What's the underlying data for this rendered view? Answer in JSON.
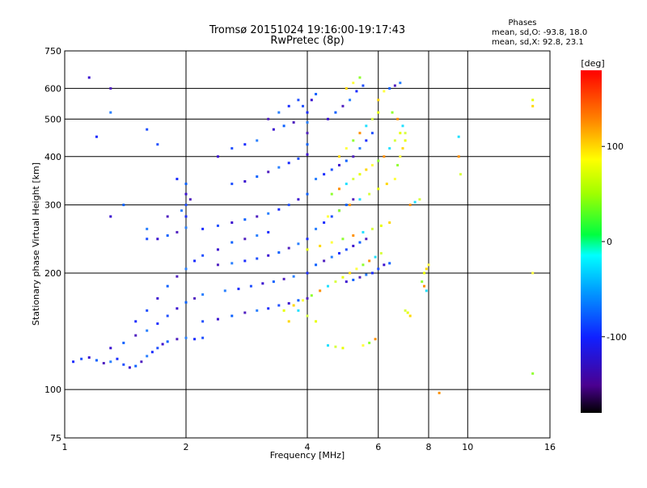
{
  "chart_data": {
    "type": "scatter",
    "title": "Tromsø 20151024 19:16:00-19:17:43",
    "subtitle": "RwPretec (8p)",
    "xlabel": "Frequency [MHz]",
    "ylabel": "Stationary phase Virtual Height [km]",
    "x_scale": "log",
    "y_scale": "log",
    "xlim": [
      1,
      16
    ],
    "ylim": [
      75,
      750
    ],
    "x_ticks": [
      1,
      2,
      4,
      6,
      8,
      10,
      16
    ],
    "x_tick_labels": [
      "1",
      "2",
      "4",
      "6",
      "8",
      "10",
      "16"
    ],
    "y_ticks": [
      75,
      100,
      200,
      300,
      400,
      500,
      600,
      750
    ],
    "y_tick_labels": [
      "75",
      "100",
      "200",
      "300",
      "400",
      "500",
      "600",
      "750"
    ],
    "grid": true,
    "stats": {
      "heading": "Phases",
      "line1": "mean, sd,O: -93.8, 18.0",
      "line2": "mean, sd,X:  92.8, 23.1"
    },
    "colorbar": {
      "label": "[deg]",
      "range": [
        -180,
        180
      ],
      "ticks": [
        100,
        0,
        -100
      ],
      "tick_labels": [
        "100",
        "0",
        "-100"
      ]
    },
    "series": [
      {
        "phase": "O",
        "points": [
          [
            1.05,
            118
          ],
          [
            1.1,
            120
          ],
          [
            1.15,
            121
          ],
          [
            1.2,
            119
          ],
          [
            1.25,
            117
          ],
          [
            1.3,
            118
          ],
          [
            1.35,
            120
          ],
          [
            1.4,
            116
          ],
          [
            1.45,
            114
          ],
          [
            1.5,
            115
          ],
          [
            1.55,
            118
          ],
          [
            1.6,
            122
          ],
          [
            1.65,
            125
          ],
          [
            1.7,
            128
          ],
          [
            1.75,
            131
          ],
          [
            1.8,
            133
          ],
          [
            1.9,
            135
          ],
          [
            2.0,
            136
          ],
          [
            2.1,
            135
          ],
          [
            2.2,
            136
          ],
          [
            1.3,
            128
          ],
          [
            1.4,
            132
          ],
          [
            1.5,
            138
          ],
          [
            1.6,
            142
          ],
          [
            1.7,
            148
          ],
          [
            1.8,
            155
          ],
          [
            1.9,
            162
          ],
          [
            2.0,
            168
          ],
          [
            2.1,
            172
          ],
          [
            2.2,
            176
          ],
          [
            1.5,
            150
          ],
          [
            1.6,
            160
          ],
          [
            1.7,
            172
          ],
          [
            1.8,
            185
          ],
          [
            1.9,
            196
          ],
          [
            2.0,
            205
          ],
          [
            2.1,
            215
          ],
          [
            2.2,
            222
          ],
          [
            2.4,
            230
          ],
          [
            2.6,
            240
          ],
          [
            2.8,
            245
          ],
          [
            3.0,
            250
          ],
          [
            3.2,
            255
          ],
          [
            1.6,
            245
          ],
          [
            1.7,
            245
          ],
          [
            1.8,
            250
          ],
          [
            1.9,
            255
          ],
          [
            2.0,
            262
          ],
          [
            2.0,
            280
          ],
          [
            2.0,
            300
          ],
          [
            2.0,
            320
          ],
          [
            2.0,
            340
          ],
          [
            2.05,
            310
          ],
          [
            1.95,
            290
          ],
          [
            2.2,
            260
          ],
          [
            2.4,
            265
          ],
          [
            2.6,
            270
          ],
          [
            2.8,
            275
          ],
          [
            3.0,
            280
          ],
          [
            3.2,
            285
          ],
          [
            3.4,
            292
          ],
          [
            3.6,
            300
          ],
          [
            3.8,
            310
          ],
          [
            4.0,
            320
          ],
          [
            2.4,
            210
          ],
          [
            2.6,
            212
          ],
          [
            2.8,
            215
          ],
          [
            3.0,
            218
          ],
          [
            3.2,
            222
          ],
          [
            3.4,
            226
          ],
          [
            3.6,
            232
          ],
          [
            3.8,
            238
          ],
          [
            4.0,
            245
          ],
          [
            2.2,
            150
          ],
          [
            2.4,
            152
          ],
          [
            2.6,
            155
          ],
          [
            2.8,
            158
          ],
          [
            3.0,
            160
          ],
          [
            3.2,
            162
          ],
          [
            3.4,
            165
          ],
          [
            3.6,
            167
          ],
          [
            3.8,
            170
          ],
          [
            4.0,
            172
          ],
          [
            2.5,
            180
          ],
          [
            2.7,
            182
          ],
          [
            2.9,
            185
          ],
          [
            3.1,
            188
          ],
          [
            3.3,
            190
          ],
          [
            3.5,
            193
          ],
          [
            3.7,
            196
          ],
          [
            4.0,
            200
          ],
          [
            2.6,
            340
          ],
          [
            2.8,
            345
          ],
          [
            3.0,
            355
          ],
          [
            3.2,
            365
          ],
          [
            3.4,
            375
          ],
          [
            3.6,
            385
          ],
          [
            3.8,
            395
          ],
          [
            4.0,
            405
          ],
          [
            4.0,
            430
          ],
          [
            4.0,
            460
          ],
          [
            4.0,
            490
          ],
          [
            4.0,
            520
          ],
          [
            3.9,
            540
          ],
          [
            4.1,
            560
          ],
          [
            4.2,
            580
          ],
          [
            3.2,
            500
          ],
          [
            3.4,
            520
          ],
          [
            3.6,
            540
          ],
          [
            3.8,
            560
          ],
          [
            3.3,
            470
          ],
          [
            3.5,
            480
          ],
          [
            3.7,
            490
          ],
          [
            3.0,
            440
          ],
          [
            2.8,
            430
          ],
          [
            2.6,
            420
          ],
          [
            2.4,
            400
          ],
          [
            4.2,
            210
          ],
          [
            4.4,
            215
          ],
          [
            4.6,
            220
          ],
          [
            4.8,
            225
          ],
          [
            5.0,
            230
          ],
          [
            5.2,
            235
          ],
          [
            5.4,
            240
          ],
          [
            5.6,
            245
          ],
          [
            4.2,
            260
          ],
          [
            4.4,
            270
          ],
          [
            4.6,
            280
          ],
          [
            4.8,
            290
          ],
          [
            5.0,
            300
          ],
          [
            5.2,
            310
          ],
          [
            4.2,
            350
          ],
          [
            4.4,
            360
          ],
          [
            4.6,
            370
          ],
          [
            4.8,
            380
          ],
          [
            5.0,
            390
          ],
          [
            5.2,
            400
          ],
          [
            5.4,
            420
          ],
          [
            5.6,
            440
          ],
          [
            5.8,
            460
          ],
          [
            4.5,
            500
          ],
          [
            4.7,
            520
          ],
          [
            4.9,
            540
          ],
          [
            5.1,
            560
          ],
          [
            5.3,
            590
          ],
          [
            5.5,
            610
          ],
          [
            5.0,
            190
          ],
          [
            5.2,
            192
          ],
          [
            5.4,
            195
          ],
          [
            5.6,
            198
          ],
          [
            5.8,
            200
          ],
          [
            6.0,
            205
          ],
          [
            6.2,
            210
          ],
          [
            6.4,
            212
          ],
          [
            1.3,
            600
          ],
          [
            1.3,
            520
          ],
          [
            1.2,
            450
          ],
          [
            1.6,
            470
          ],
          [
            1.3,
            280
          ],
          [
            1.4,
            300
          ],
          [
            1.8,
            280
          ],
          [
            1.6,
            260
          ],
          [
            1.9,
            350
          ],
          [
            1.7,
            430
          ],
          [
            1.15,
            640
          ],
          [
            6.4,
            600
          ],
          [
            6.6,
            610
          ],
          [
            6.8,
            620
          ]
        ]
      },
      {
        "phase": "X",
        "points": [
          [
            3.5,
            160
          ],
          [
            3.7,
            165
          ],
          [
            3.9,
            170
          ],
          [
            4.1,
            175
          ],
          [
            4.3,
            180
          ],
          [
            4.5,
            185
          ],
          [
            4.7,
            190
          ],
          [
            4.9,
            195
          ],
          [
            5.1,
            200
          ],
          [
            5.3,
            205
          ],
          [
            5.5,
            210
          ],
          [
            5.7,
            215
          ],
          [
            5.9,
            220
          ],
          [
            6.1,
            225
          ],
          [
            4.0,
            230
          ],
          [
            4.3,
            235
          ],
          [
            4.6,
            240
          ],
          [
            4.9,
            245
          ],
          [
            5.2,
            250
          ],
          [
            5.5,
            255
          ],
          [
            5.8,
            260
          ],
          [
            6.1,
            265
          ],
          [
            6.4,
            270
          ],
          [
            4.5,
            280
          ],
          [
            4.8,
            290
          ],
          [
            5.1,
            300
          ],
          [
            5.4,
            310
          ],
          [
            5.7,
            320
          ],
          [
            6.0,
            330
          ],
          [
            6.3,
            340
          ],
          [
            6.6,
            350
          ],
          [
            4.6,
            320
          ],
          [
            4.8,
            330
          ],
          [
            5.0,
            340
          ],
          [
            5.2,
            350
          ],
          [
            5.4,
            360
          ],
          [
            5.6,
            370
          ],
          [
            5.8,
            380
          ],
          [
            6.0,
            390
          ],
          [
            6.2,
            400
          ],
          [
            6.4,
            420
          ],
          [
            6.6,
            440
          ],
          [
            6.8,
            460
          ],
          [
            4.8,
            400
          ],
          [
            5.0,
            420
          ],
          [
            5.2,
            440
          ],
          [
            5.4,
            460
          ],
          [
            5.6,
            480
          ],
          [
            5.8,
            500
          ],
          [
            6.0,
            520
          ],
          [
            6.0,
            560
          ],
          [
            6.2,
            590
          ],
          [
            6.5,
            520
          ],
          [
            6.7,
            500
          ],
          [
            6.9,
            480
          ],
          [
            7.0,
            460
          ],
          [
            7.0,
            440
          ],
          [
            6.9,
            420
          ],
          [
            6.8,
            400
          ],
          [
            6.7,
            380
          ],
          [
            7.2,
            300
          ],
          [
            7.4,
            305
          ],
          [
            7.6,
            310
          ],
          [
            7.8,
            200
          ],
          [
            7.9,
            205
          ],
          [
            8.0,
            210
          ],
          [
            7.7,
            190
          ],
          [
            7.8,
            185
          ],
          [
            7.9,
            180
          ],
          [
            7.0,
            160
          ],
          [
            7.1,
            158
          ],
          [
            7.2,
            155
          ],
          [
            5.5,
            130
          ],
          [
            5.7,
            132
          ],
          [
            5.9,
            135
          ],
          [
            4.5,
            130
          ],
          [
            4.7,
            129
          ],
          [
            4.9,
            128
          ],
          [
            5.0,
            600
          ],
          [
            5.2,
            620
          ],
          [
            5.4,
            640
          ],
          [
            9.5,
            400
          ],
          [
            9.5,
            450
          ],
          [
            9.6,
            360
          ],
          [
            14.5,
            560
          ],
          [
            14.5,
            540
          ],
          [
            14.5,
            200
          ],
          [
            14.5,
            110
          ],
          [
            8.5,
            98
          ],
          [
            3.8,
            160
          ],
          [
            4.0,
            155
          ],
          [
            4.2,
            150
          ],
          [
            3.6,
            150
          ]
        ]
      }
    ]
  }
}
